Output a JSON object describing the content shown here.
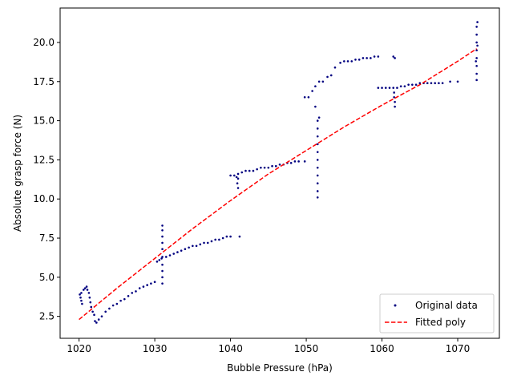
{
  "chart_data": {
    "type": "scatter",
    "title": "",
    "xlabel": "Bubble Pressure (hPa)",
    "ylabel": "Absolute grasp force (N)",
    "xlim": [
      1017.5,
      1075.5
    ],
    "ylim": [
      1.1,
      22.2
    ],
    "xticks": [
      1020,
      1030,
      1040,
      1050,
      1060,
      1070
    ],
    "yticks": [
      2.5,
      5.0,
      7.5,
      10.0,
      12.5,
      15.0,
      17.5,
      20.0
    ],
    "grid": false,
    "legend_position": "lower-right",
    "colors": {
      "scatter": "#000080",
      "fit": "#ff0000",
      "axes": "#000000"
    },
    "series": [
      {
        "name": "Original data",
        "kind": "scatter",
        "points": [
          [
            1020.1,
            3.9
          ],
          [
            1020.2,
            3.7
          ],
          [
            1020.3,
            3.5
          ],
          [
            1020.4,
            3.3
          ],
          [
            1020.3,
            4.0
          ],
          [
            1020.6,
            4.2
          ],
          [
            1020.8,
            4.3
          ],
          [
            1021.0,
            4.4
          ],
          [
            1021.1,
            4.2
          ],
          [
            1021.3,
            4.0
          ],
          [
            1021.4,
            3.7
          ],
          [
            1021.5,
            3.4
          ],
          [
            1021.6,
            3.1
          ],
          [
            1021.8,
            2.8
          ],
          [
            1022.0,
            2.6
          ],
          [
            1022.1,
            2.2
          ],
          [
            1022.3,
            2.1
          ],
          [
            1022.6,
            2.3
          ],
          [
            1023.0,
            2.5
          ],
          [
            1023.5,
            2.8
          ],
          [
            1024.0,
            3.0
          ],
          [
            1024.5,
            3.2
          ],
          [
            1025.0,
            3.3
          ],
          [
            1025.5,
            3.5
          ],
          [
            1026.0,
            3.6
          ],
          [
            1026.5,
            3.8
          ],
          [
            1027.0,
            4.0
          ],
          [
            1027.5,
            4.1
          ],
          [
            1028.0,
            4.3
          ],
          [
            1028.5,
            4.4
          ],
          [
            1029.0,
            4.5
          ],
          [
            1029.5,
            4.6
          ],
          [
            1030.0,
            4.7
          ],
          [
            1030.3,
            6.0
          ],
          [
            1030.6,
            6.1
          ],
          [
            1030.9,
            6.2
          ],
          [
            1031.0,
            4.6
          ],
          [
            1031.0,
            5.0
          ],
          [
            1031.0,
            5.4
          ],
          [
            1031.0,
            5.8
          ],
          [
            1031.0,
            6.3
          ],
          [
            1031.0,
            6.8
          ],
          [
            1031.0,
            7.2
          ],
          [
            1031.0,
            7.6
          ],
          [
            1031.0,
            8.0
          ],
          [
            1031.0,
            8.3
          ],
          [
            1031.5,
            6.3
          ],
          [
            1032.0,
            6.4
          ],
          [
            1032.5,
            6.5
          ],
          [
            1033.0,
            6.6
          ],
          [
            1033.5,
            6.7
          ],
          [
            1034.0,
            6.8
          ],
          [
            1034.5,
            6.9
          ],
          [
            1035.0,
            7.0
          ],
          [
            1035.5,
            7.0
          ],
          [
            1036.0,
            7.1
          ],
          [
            1036.5,
            7.2
          ],
          [
            1037.0,
            7.2
          ],
          [
            1037.5,
            7.3
          ],
          [
            1038.0,
            7.4
          ],
          [
            1038.5,
            7.4
          ],
          [
            1039.0,
            7.5
          ],
          [
            1039.5,
            7.6
          ],
          [
            1040.0,
            7.6
          ],
          [
            1041.2,
            7.6
          ],
          [
            1040.0,
            11.5
          ],
          [
            1040.5,
            11.5
          ],
          [
            1040.8,
            11.4
          ],
          [
            1040.9,
            11.0
          ],
          [
            1041.0,
            10.7
          ],
          [
            1041.0,
            11.3
          ],
          [
            1041.0,
            11.6
          ],
          [
            1041.5,
            11.7
          ],
          [
            1042.0,
            11.8
          ],
          [
            1042.5,
            11.8
          ],
          [
            1043.0,
            11.8
          ],
          [
            1043.5,
            11.9
          ],
          [
            1044.0,
            12.0
          ],
          [
            1044.5,
            12.0
          ],
          [
            1045.0,
            12.0
          ],
          [
            1045.5,
            12.1
          ],
          [
            1046.0,
            12.1
          ],
          [
            1046.5,
            12.2
          ],
          [
            1047.0,
            12.2
          ],
          [
            1047.5,
            12.3
          ],
          [
            1048.0,
            12.3
          ],
          [
            1048.5,
            12.4
          ],
          [
            1049.0,
            12.4
          ],
          [
            1049.8,
            12.4
          ],
          [
            1051.5,
            10.1
          ],
          [
            1051.5,
            10.5
          ],
          [
            1051.5,
            11.0
          ],
          [
            1051.5,
            11.5
          ],
          [
            1051.5,
            12.0
          ],
          [
            1051.5,
            12.5
          ],
          [
            1051.5,
            13.0
          ],
          [
            1051.5,
            13.5
          ],
          [
            1051.5,
            14.0
          ],
          [
            1051.5,
            14.5
          ],
          [
            1051.5,
            15.0
          ],
          [
            1051.7,
            15.2
          ],
          [
            1051.2,
            15.9
          ],
          [
            1049.8,
            16.5
          ],
          [
            1050.3,
            16.5
          ],
          [
            1050.8,
            16.9
          ],
          [
            1051.2,
            17.2
          ],
          [
            1051.7,
            17.5
          ],
          [
            1052.2,
            17.5
          ],
          [
            1052.8,
            17.8
          ],
          [
            1053.3,
            17.9
          ],
          [
            1053.8,
            18.4
          ],
          [
            1054.5,
            18.7
          ],
          [
            1055.0,
            18.8
          ],
          [
            1055.5,
            18.8
          ],
          [
            1056.0,
            18.8
          ],
          [
            1056.5,
            18.9
          ],
          [
            1057.0,
            18.9
          ],
          [
            1057.5,
            19.0
          ],
          [
            1058.0,
            19.0
          ],
          [
            1058.5,
            19.0
          ],
          [
            1059.0,
            19.1
          ],
          [
            1059.5,
            19.1
          ],
          [
            1061.5,
            19.1
          ],
          [
            1061.7,
            19.0
          ],
          [
            1059.5,
            17.1
          ],
          [
            1060.0,
            17.1
          ],
          [
            1060.5,
            17.1
          ],
          [
            1061.0,
            17.1
          ],
          [
            1061.5,
            17.1
          ],
          [
            1061.6,
            16.8
          ],
          [
            1061.6,
            16.5
          ],
          [
            1061.7,
            16.2
          ],
          [
            1061.7,
            15.9
          ],
          [
            1062.0,
            17.1
          ],
          [
            1062.5,
            17.2
          ],
          [
            1063.0,
            17.2
          ],
          [
            1063.5,
            17.3
          ],
          [
            1064.0,
            17.3
          ],
          [
            1064.5,
            17.3
          ],
          [
            1065.0,
            17.4
          ],
          [
            1065.5,
            17.4
          ],
          [
            1066.0,
            17.4
          ],
          [
            1066.5,
            17.4
          ],
          [
            1067.0,
            17.4
          ],
          [
            1067.5,
            17.4
          ],
          [
            1068.0,
            17.4
          ],
          [
            1069.0,
            17.5
          ],
          [
            1070.0,
            17.5
          ],
          [
            1072.5,
            17.6
          ],
          [
            1072.5,
            18.0
          ],
          [
            1072.5,
            18.5
          ],
          [
            1072.5,
            19.0
          ],
          [
            1072.5,
            19.5
          ],
          [
            1072.5,
            20.0
          ],
          [
            1072.5,
            20.5
          ],
          [
            1072.5,
            21.0
          ],
          [
            1072.6,
            21.3
          ],
          [
            1072.4,
            18.8
          ],
          [
            1072.6,
            19.8
          ]
        ]
      },
      {
        "name": "Fitted poly",
        "kind": "line",
        "style": "dashed",
        "points": [
          [
            1020,
            2.3
          ],
          [
            1025,
            4.3
          ],
          [
            1030,
            6.2
          ],
          [
            1035,
            8.1
          ],
          [
            1040,
            9.9
          ],
          [
            1045,
            11.6
          ],
          [
            1050,
            13.1
          ],
          [
            1055,
            14.6
          ],
          [
            1060,
            16.0
          ],
          [
            1065,
            17.3
          ],
          [
            1070,
            18.8
          ],
          [
            1072.5,
            19.6
          ]
        ]
      }
    ]
  }
}
